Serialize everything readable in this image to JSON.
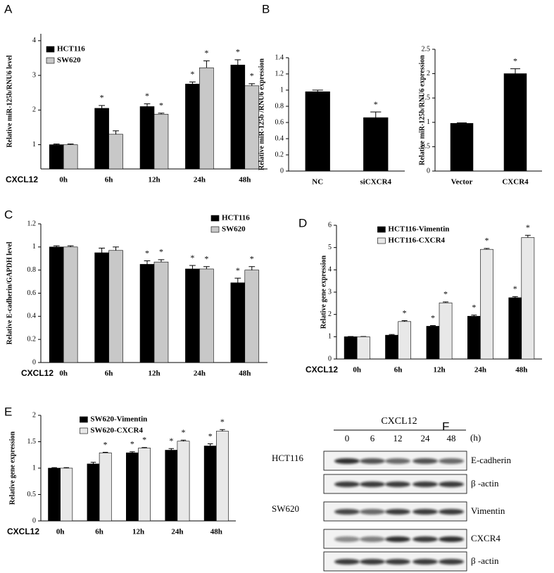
{
  "chart_data": [
    {
      "panel": "A",
      "type": "bar",
      "ylabel": "Relative miR-125b/RNU6 level",
      "xlabel": "CXCL12",
      "categories": [
        "0h",
        "6h",
        "12h",
        "24h",
        "48h"
      ],
      "series": [
        {
          "name": "HCT116",
          "color": "#000000",
          "values": [
            1.0,
            2.05,
            2.1,
            2.75,
            3.3
          ],
          "errors": [
            0.02,
            0.08,
            0.08,
            0.06,
            0.15
          ],
          "significance": [
            null,
            "*",
            "*",
            "*",
            "*"
          ]
        },
        {
          "name": "SW620",
          "color": "#c8c8c8",
          "values": [
            1.0,
            1.3,
            1.88,
            3.22,
            2.7
          ],
          "errors": [
            0.02,
            0.1,
            0.03,
            0.2,
            0.06
          ],
          "significance": [
            null,
            null,
            "*",
            "*",
            "*"
          ]
        }
      ],
      "ylim": [
        0.3,
        4.2
      ],
      "yticks": [
        1,
        2,
        3,
        4
      ],
      "legend": "upper left"
    },
    {
      "panel": "B",
      "type": "bar",
      "ylabel": "Relative miR-125b /RNU6 expression",
      "categories": [
        "NC",
        "siCXCR4"
      ],
      "series": [
        {
          "color": "#000000",
          "values": [
            0.98,
            0.66
          ],
          "errors": [
            0.02,
            0.07
          ],
          "significance": [
            null,
            "*"
          ]
        }
      ],
      "ylim": [
        0,
        1.4
      ],
      "yticks": [
        0,
        0.2,
        0.4,
        0.6,
        0.8,
        1,
        1.2,
        1.4
      ]
    },
    {
      "type": "bar",
      "ylabel": "Relative miR-125b/RNU6 expression",
      "categories": [
        "Vector",
        "CXCR4"
      ],
      "series": [
        {
          "color": "#000000",
          "values": [
            0.98,
            2.0
          ],
          "errors": [
            0.01,
            0.1
          ],
          "significance": [
            null,
            "*"
          ]
        }
      ],
      "ylim": [
        0,
        2.5
      ],
      "yticks": [
        0,
        0.5,
        1,
        1.5,
        2,
        2.5
      ]
    },
    {
      "panel": "C",
      "type": "bar",
      "ylabel": "Relative E-cadherin/GAPDH level",
      "xlabel": "CXCL12",
      "categories": [
        "0h",
        "6h",
        "12h",
        "24h",
        "48h"
      ],
      "series": [
        {
          "name": "HCT116",
          "color": "#000000",
          "values": [
            1.0,
            0.95,
            0.85,
            0.81,
            0.69
          ],
          "errors": [
            0.01,
            0.04,
            0.03,
            0.03,
            0.04
          ],
          "significance": [
            null,
            null,
            "*",
            "*",
            "*"
          ]
        },
        {
          "name": "SW620",
          "color": "#c8c8c8",
          "values": [
            1.0,
            0.97,
            0.87,
            0.81,
            0.8
          ],
          "errors": [
            0.01,
            0.03,
            0.02,
            0.02,
            0.03
          ],
          "significance": [
            null,
            null,
            "*",
            "*",
            "*"
          ]
        }
      ],
      "ylim": [
        0,
        1.2
      ],
      "yticks": [
        0,
        0.2,
        0.4,
        0.6,
        0.8,
        1,
        1.2
      ],
      "legend": "upper right"
    },
    {
      "panel": "D",
      "type": "bar",
      "ylabel": "Relative gene expression",
      "xlabel": "CXCL12",
      "categories": [
        "0h",
        "6h",
        "12h",
        "24h",
        "48h"
      ],
      "series": [
        {
          "name": "HCT116-Vimentin",
          "color": "#000000",
          "values": [
            1,
            1.07,
            1.47,
            1.92,
            2.75
          ],
          "errors": [
            0.01,
            0.03,
            0.03,
            0.05,
            0.05
          ],
          "significance": [
            null,
            null,
            "*",
            "*",
            "*"
          ]
        },
        {
          "name": "HCT116-CXCR4",
          "color": "#e8e8e8",
          "values": [
            1,
            1.68,
            2.52,
            4.92,
            5.45
          ],
          "errors": [
            0.01,
            0.04,
            0.04,
            0.04,
            0.1
          ],
          "significance": [
            null,
            "*",
            "*",
            "*",
            "*"
          ]
        }
      ],
      "ylim": [
        0,
        6
      ],
      "yticks": [
        0,
        1,
        2,
        3,
        4,
        5,
        6
      ],
      "legend": "upper center"
    },
    {
      "panel": "E",
      "type": "bar",
      "ylabel": "Relative gene expression",
      "xlabel": "CXCL12",
      "categories": [
        "0h",
        "6h",
        "12h",
        "24h",
        "48h"
      ],
      "series": [
        {
          "name": "SW620-Vimentin",
          "color": "#000000",
          "values": [
            1,
            1.08,
            1.29,
            1.34,
            1.42
          ],
          "errors": [
            0.01,
            0.03,
            0.02,
            0.03,
            0.04
          ],
          "significance": [
            null,
            null,
            "*",
            "*",
            "*"
          ]
        },
        {
          "name": "SW620-CXCR4",
          "color": "#e8e8e8",
          "values": [
            1,
            1.29,
            1.38,
            1.51,
            1.7
          ],
          "errors": [
            0.01,
            0.01,
            0.01,
            0.02,
            0.03
          ],
          "significance": [
            null,
            "*",
            "*",
            "*",
            "*"
          ]
        }
      ],
      "ylim": [
        0,
        2
      ],
      "yticks": [
        0,
        0.5,
        1,
        1.5,
        2
      ],
      "legend": "upper center"
    }
  ],
  "blot": {
    "panel": "F",
    "title": "CXCL12",
    "lanes": [
      "0",
      "6",
      "12",
      "24",
      "48"
    ],
    "unit": "(h)",
    "groups": [
      {
        "cell_line": "HCT116",
        "rows": [
          "E-cadherin",
          "β -actin"
        ]
      },
      {
        "cell_line": "SW620",
        "rows": [
          "Vimentin",
          "CXCR4",
          "β -actin"
        ]
      }
    ]
  }
}
